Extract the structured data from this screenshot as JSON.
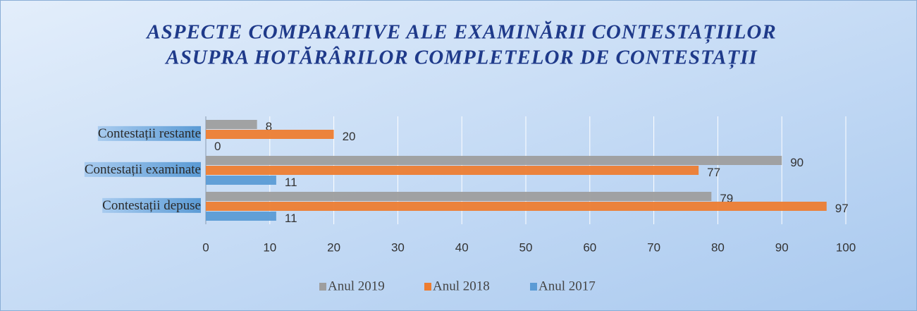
{
  "chart_data": {
    "type": "bar",
    "orientation": "horizontal",
    "title": [
      "ASPECTE COMPARATIVE ALE EXAMINĂRII CONTESTAȚIILOR",
      "ASUPRA HOTĂRÂRILOR COMPLETELOR DE CONTESTAȚII"
    ],
    "categories": [
      "Contestații restante",
      "Contestații examinate",
      "Contestații depuse"
    ],
    "series": [
      {
        "name": "Anul 2019",
        "color": "#9e9e9e",
        "values": [
          8,
          90,
          79
        ]
      },
      {
        "name": "Anul 2018",
        "color": "#ed7d31",
        "values": [
          20,
          77,
          97
        ]
      },
      {
        "name": "Anul 2017",
        "color": "#5b9bd5",
        "values": [
          0,
          11,
          11
        ]
      }
    ],
    "xlim": [
      0,
      100
    ],
    "xticks": [
      0,
      10,
      20,
      30,
      40,
      50,
      60,
      70,
      80,
      90,
      100
    ],
    "grid": true,
    "legend": "bottom"
  }
}
